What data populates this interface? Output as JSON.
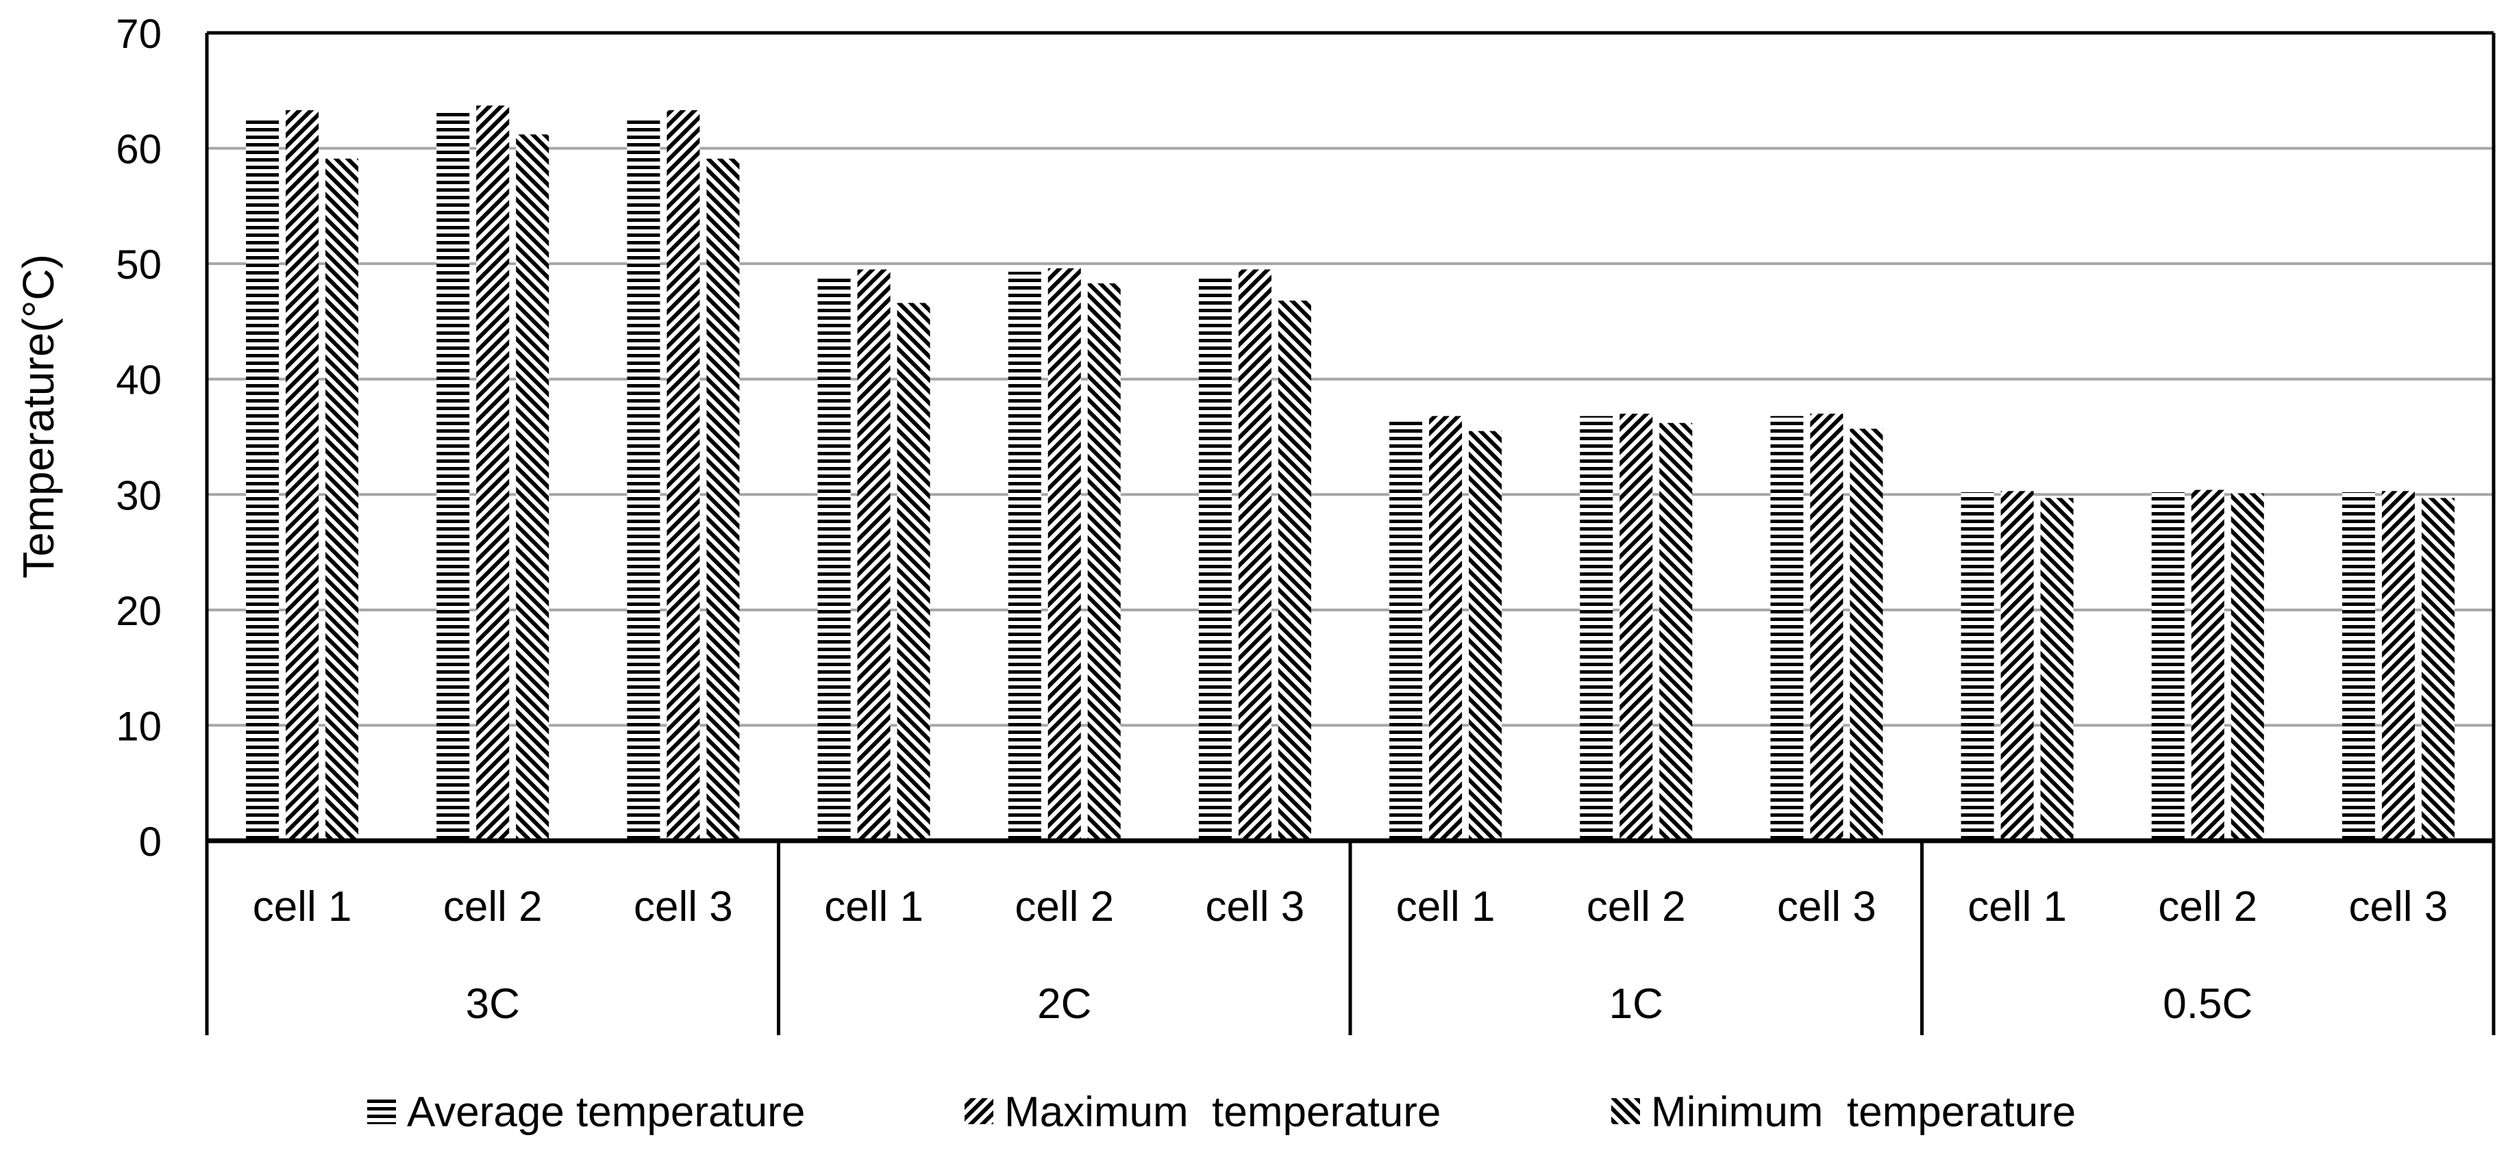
{
  "chart_data": {
    "type": "bar",
    "title": "",
    "ylabel": "Temperature(°C)",
    "xlabel": "",
    "ylim": [
      0,
      70
    ],
    "yticks": [
      0,
      10,
      20,
      30,
      40,
      50,
      60,
      70
    ],
    "grid": true,
    "legend_position": "bottom",
    "groups": [
      {
        "label": "3C",
        "categories": [
          "cell 1",
          "cell 2",
          "cell 3"
        ]
      },
      {
        "label": "2C",
        "categories": [
          "cell 1",
          "cell 2",
          "cell 3"
        ]
      },
      {
        "label": "1C",
        "categories": [
          "cell 1",
          "cell 2",
          "cell 3"
        ]
      },
      {
        "label": "0.5C",
        "categories": [
          "cell 1",
          "cell 2",
          "cell 3"
        ]
      }
    ],
    "series": [
      {
        "name": "Average temperature",
        "pattern": "horizontal",
        "values": [
          62.5,
          63.2,
          62.5,
          49.0,
          49.3,
          49.0,
          36.6,
          36.8,
          36.8,
          30.2,
          30.2,
          30.2
        ]
      },
      {
        "name": "Maximum  temperature",
        "pattern": "backward-diagonal",
        "values": [
          63.3,
          63.7,
          63.3,
          49.5,
          49.6,
          49.5,
          36.8,
          37.0,
          37.0,
          30.3,
          30.4,
          30.3
        ]
      },
      {
        "name": "Minimum  temperature",
        "pattern": "forward-diagonal",
        "values": [
          59.1,
          61.2,
          59.1,
          46.6,
          48.3,
          46.8,
          35.5,
          36.2,
          35.7,
          29.7,
          30.1,
          29.7
        ]
      }
    ]
  }
}
